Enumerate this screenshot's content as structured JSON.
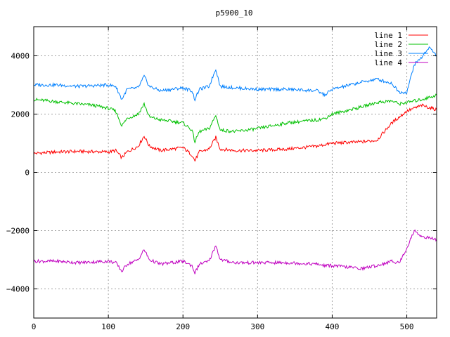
{
  "chart_data": {
    "type": "line",
    "title": "p5900_10",
    "xlabel": "",
    "ylabel": "",
    "xlim": [
      0,
      540
    ],
    "ylim": [
      -5000,
      5000
    ],
    "x_ticks": [
      0,
      100,
      200,
      300,
      400,
      500
    ],
    "y_ticks": [
      -4000,
      -2000,
      0,
      2000,
      4000
    ],
    "grid": true,
    "legend_position": "top-right",
    "series": [
      {
        "name": "line 1",
        "color": "#ff0000",
        "x": [
          0,
          30,
          60,
          100,
          110,
          118,
          125,
          140,
          148,
          155,
          170,
          200,
          212,
          216,
          222,
          235,
          244,
          250,
          270,
          300,
          340,
          380,
          390,
          400,
          440,
          460,
          480,
          500,
          520,
          540
        ],
        "y": [
          650,
          700,
          720,
          700,
          750,
          500,
          700,
          900,
          1250,
          900,
          750,
          850,
          600,
          400,
          700,
          800,
          1200,
          800,
          750,
          750,
          800,
          900,
          950,
          1000,
          1050,
          1100,
          1700,
          2100,
          2300,
          2150
        ]
      },
      {
        "name": "line 2",
        "color": "#00c000",
        "x": [
          0,
          20,
          40,
          60,
          80,
          100,
          110,
          118,
          125,
          140,
          148,
          155,
          170,
          200,
          212,
          216,
          222,
          235,
          244,
          250,
          270,
          300,
          340,
          380,
          390,
          400,
          440,
          460,
          480,
          490,
          500,
          520,
          540
        ],
        "y": [
          2500,
          2450,
          2400,
          2350,
          2300,
          2200,
          2100,
          1600,
          1850,
          2000,
          2350,
          1900,
          1800,
          1700,
          1450,
          1050,
          1400,
          1500,
          1950,
          1450,
          1400,
          1500,
          1700,
          1800,
          1850,
          2000,
          2250,
          2400,
          2450,
          2350,
          2400,
          2500,
          2650
        ]
      },
      {
        "name": "line 3",
        "color": "#0080ff",
        "x": [
          0,
          30,
          60,
          100,
          110,
          118,
          125,
          140,
          148,
          155,
          170,
          200,
          212,
          216,
          222,
          235,
          244,
          250,
          270,
          300,
          340,
          380,
          390,
          400,
          440,
          460,
          480,
          490,
          500,
          510,
          520,
          530,
          540
        ],
        "y": [
          3000,
          3000,
          2950,
          3000,
          2950,
          2500,
          2850,
          2900,
          3300,
          2950,
          2800,
          2900,
          2800,
          2500,
          2850,
          2950,
          3550,
          2950,
          2900,
          2850,
          2850,
          2800,
          2650,
          2850,
          3100,
          3200,
          3050,
          2750,
          2750,
          3700,
          3950,
          4300,
          4000
        ]
      },
      {
        "name": "line 4",
        "color": "#c000c0",
        "x": [
          0,
          30,
          60,
          100,
          110,
          118,
          125,
          140,
          148,
          155,
          170,
          200,
          212,
          216,
          222,
          235,
          244,
          250,
          270,
          300,
          340,
          380,
          390,
          400,
          440,
          460,
          480,
          490,
          500,
          510,
          520,
          540
        ],
        "y": [
          -3050,
          -3050,
          -3100,
          -3050,
          -3100,
          -3400,
          -3150,
          -3000,
          -2650,
          -3000,
          -3150,
          -3050,
          -3200,
          -3450,
          -3150,
          -3050,
          -2500,
          -3000,
          -3100,
          -3100,
          -3100,
          -3150,
          -3200,
          -3200,
          -3300,
          -3200,
          -3050,
          -3100,
          -2600,
          -2000,
          -2200,
          -2300
        ]
      }
    ]
  }
}
